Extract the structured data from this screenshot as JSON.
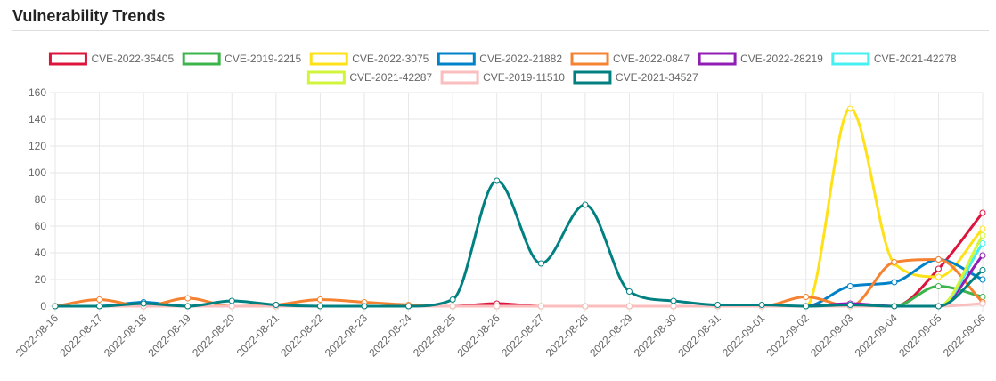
{
  "page": {
    "title": "Vulnerability Trends"
  },
  "chart_data": {
    "type": "line",
    "title": "",
    "xlabel": "",
    "ylabel": "",
    "ylim": [
      0,
      160
    ],
    "yticks": [
      0,
      20,
      40,
      60,
      80,
      100,
      120,
      140,
      160
    ],
    "grid": true,
    "legend_position": "top-center",
    "categories": [
      "2022-08-16",
      "2022-08-17",
      "2022-08-18",
      "2022-08-19",
      "2022-08-20",
      "2022-08-21",
      "2022-08-22",
      "2022-08-23",
      "2022-08-24",
      "2022-08-25",
      "2022-08-26",
      "2022-08-27",
      "2022-08-28",
      "2022-08-29",
      "2022-08-30",
      "2022-08-31",
      "2022-09-01",
      "2022-09-02",
      "2022-09-03",
      "2022-09-04",
      "2022-09-05",
      "2022-09-06"
    ],
    "series": [
      {
        "name": "CVE-2022-35405",
        "color": "#dc143c",
        "values": [
          0,
          0,
          0,
          0,
          0,
          0,
          0,
          0,
          0,
          0,
          2,
          0,
          0,
          0,
          0,
          0,
          0,
          0,
          0,
          0,
          28,
          70
        ]
      },
      {
        "name": "CVE-2019-2215",
        "color": "#3cb44b",
        "values": [
          0,
          0,
          0,
          0,
          0,
          0,
          0,
          0,
          0,
          0,
          0,
          0,
          0,
          0,
          0,
          0,
          0,
          0,
          0,
          0,
          15,
          7
        ]
      },
      {
        "name": "CVE-2022-3075",
        "color": "#ffe119",
        "values": [
          0,
          0,
          0,
          0,
          0,
          0,
          0,
          0,
          0,
          0,
          0,
          0,
          0,
          0,
          0,
          0,
          0,
          0,
          148,
          32,
          22,
          58
        ]
      },
      {
        "name": "CVE-2022-21882",
        "color": "#0082c8",
        "values": [
          0,
          0,
          3,
          0,
          0,
          0,
          0,
          0,
          0,
          0,
          0,
          0,
          0,
          0,
          0,
          0,
          0,
          0,
          15,
          18,
          35,
          20
        ]
      },
      {
        "name": "CVE-2022-0847",
        "color": "#f58231",
        "values": [
          0,
          5,
          0,
          6,
          0,
          1,
          5,
          3,
          1,
          0,
          0,
          0,
          0,
          0,
          0,
          0,
          0,
          7,
          0,
          33,
          35,
          3
        ]
      },
      {
        "name": "CVE-2022-28219",
        "color": "#911eb4",
        "values": [
          0,
          0,
          0,
          0,
          0,
          0,
          0,
          0,
          0,
          0,
          0,
          0,
          0,
          0,
          0,
          0,
          0,
          0,
          2,
          0,
          0,
          38
        ]
      },
      {
        "name": "CVE-2021-42278",
        "color": "#46f0f0",
        "values": [
          0,
          0,
          0,
          0,
          0,
          0,
          0,
          0,
          0,
          0,
          0,
          0,
          0,
          0,
          0,
          0,
          0,
          0,
          0,
          0,
          0,
          47
        ]
      },
      {
        "name": "CVE-2021-42287",
        "color": "#d2f53c",
        "values": [
          0,
          0,
          0,
          0,
          0,
          0,
          0,
          0,
          0,
          0,
          0,
          0,
          0,
          0,
          0,
          0,
          0,
          0,
          0,
          0,
          0,
          53
        ]
      },
      {
        "name": "CVE-2019-11510",
        "color": "#fabebe",
        "values": [
          0,
          0,
          0,
          0,
          0,
          0,
          0,
          0,
          0,
          0,
          0,
          0,
          0,
          0,
          0,
          0,
          0,
          0,
          0,
          0,
          0,
          2
        ]
      },
      {
        "name": "CVE-2021-34527",
        "color": "#008080",
        "values": [
          0,
          0,
          2,
          0,
          4,
          1,
          0,
          0,
          0,
          5,
          94,
          32,
          76,
          11,
          4,
          1,
          1,
          0,
          1,
          0,
          0,
          27
        ]
      }
    ]
  }
}
